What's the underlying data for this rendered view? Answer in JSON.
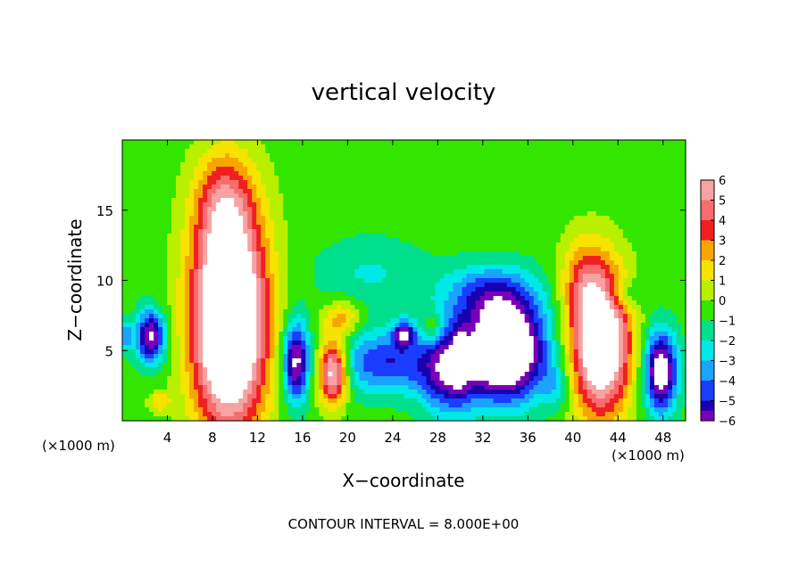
{
  "chart_data": {
    "type": "heatmap",
    "title": "vertical velocity",
    "xlabel": "X−coordinate",
    "ylabel": "Z−coordinate",
    "x_unit_left": "(×1000 m)",
    "x_unit_right": "(×1000 m)",
    "footer": "CONTOUR INTERVAL = 8.000E+00",
    "xlim": [
      0,
      50
    ],
    "ylim": [
      0,
      20
    ],
    "x_ticks": [
      4,
      8,
      12,
      16,
      20,
      24,
      28,
      32,
      36,
      40,
      44,
      48
    ],
    "x_tick_labels": [
      "4",
      "8",
      "12",
      "16",
      "20",
      "24",
      "28",
      "32",
      "36",
      "40",
      "44",
      "48"
    ],
    "y_ticks": [
      5,
      10,
      15
    ],
    "y_tick_labels": [
      "5",
      "10",
      "15"
    ],
    "colorbar": {
      "ticks": [
        6,
        5,
        4,
        3,
        2,
        1,
        0,
        -1,
        -2,
        -3,
        -4,
        -5,
        -6
      ],
      "tick_labels": [
        "6",
        "5",
        "4",
        "3",
        "2",
        "1",
        "0",
        "−1",
        "−2",
        "−3",
        "−4",
        "−5",
        "−6"
      ],
      "colors": [
        "#f7a3a3",
        "#f76d6d",
        "#f02020",
        "#f7a600",
        "#f7e300",
        "#b8f000",
        "#33e600",
        "#00e08c",
        "#00e8e8",
        "#1aa3ff",
        "#1a3dff",
        "#1a00b0",
        "#7a00b8"
      ]
    },
    "background_color": "#33e82a",
    "features": [
      {
        "x": 9.5,
        "z": 7.2,
        "sx": 2.3,
        "sz": 5.5,
        "w": 12.0
      },
      {
        "x": 9.0,
        "z": 15.5,
        "sx": 1.8,
        "sz": 2.5,
        "w": 3.2
      },
      {
        "x": 2.5,
        "z": 6.0,
        "sx": 0.9,
        "sz": 1.3,
        "w": -7.0
      },
      {
        "x": 15.4,
        "z": 4.2,
        "sx": 0.8,
        "sz": 2.0,
        "w": -7.0
      },
      {
        "x": 18.7,
        "z": 3.5,
        "sx": 0.9,
        "sz": 1.6,
        "w": 8.0
      },
      {
        "x": 19.5,
        "z": 7.3,
        "sx": 1.2,
        "sz": 0.9,
        "w": 3.0
      },
      {
        "x": 23.5,
        "z": 4.2,
        "sx": 3.2,
        "sz": 1.6,
        "w": -4.5
      },
      {
        "x": 25.0,
        "z": 6.2,
        "sx": 0.6,
        "sz": 0.6,
        "w": -5.5
      },
      {
        "x": 29.0,
        "z": 3.5,
        "sx": 1.7,
        "sz": 2.2,
        "w": -5.5
      },
      {
        "x": 30.0,
        "z": 4.5,
        "sx": 0.4,
        "sz": 1.5,
        "w": -3.0
      },
      {
        "x": 27.5,
        "z": 6.6,
        "sx": 0.6,
        "sz": 0.8,
        "w": 2.0
      },
      {
        "x": 34.0,
        "z": 5.0,
        "sx": 2.4,
        "sz": 2.4,
        "w": -11.0
      },
      {
        "x": 32.5,
        "z": 9.0,
        "sx": 3.0,
        "sz": 1.5,
        "w": -3.6
      },
      {
        "x": 42.5,
        "z": 5.5,
        "sx": 1.8,
        "sz": 3.5,
        "w": 10.0
      },
      {
        "x": 41.0,
        "z": 10.0,
        "sx": 1.5,
        "sz": 2.2,
        "w": 2.8
      },
      {
        "x": 44.5,
        "z": 9.0,
        "sx": 1.3,
        "sz": 0.8,
        "w": -2.0
      },
      {
        "x": 47.8,
        "z": 3.5,
        "sx": 1.0,
        "sz": 2.0,
        "w": -8.0
      },
      {
        "x": 3.3,
        "z": 1.3,
        "sx": 0.7,
        "sz": 0.5,
        "w": 2.4
      },
      {
        "x": 22.0,
        "z": 10.5,
        "sx": 3.5,
        "sz": 1.8,
        "w": -1.6
      },
      {
        "x": 0.3,
        "z": 6.0,
        "sx": 0.4,
        "sz": 0.8,
        "w": -3.0
      },
      {
        "x": 38.5,
        "z": 2.5,
        "sx": 0.8,
        "sz": 1.2,
        "w": -2.0
      }
    ]
  }
}
